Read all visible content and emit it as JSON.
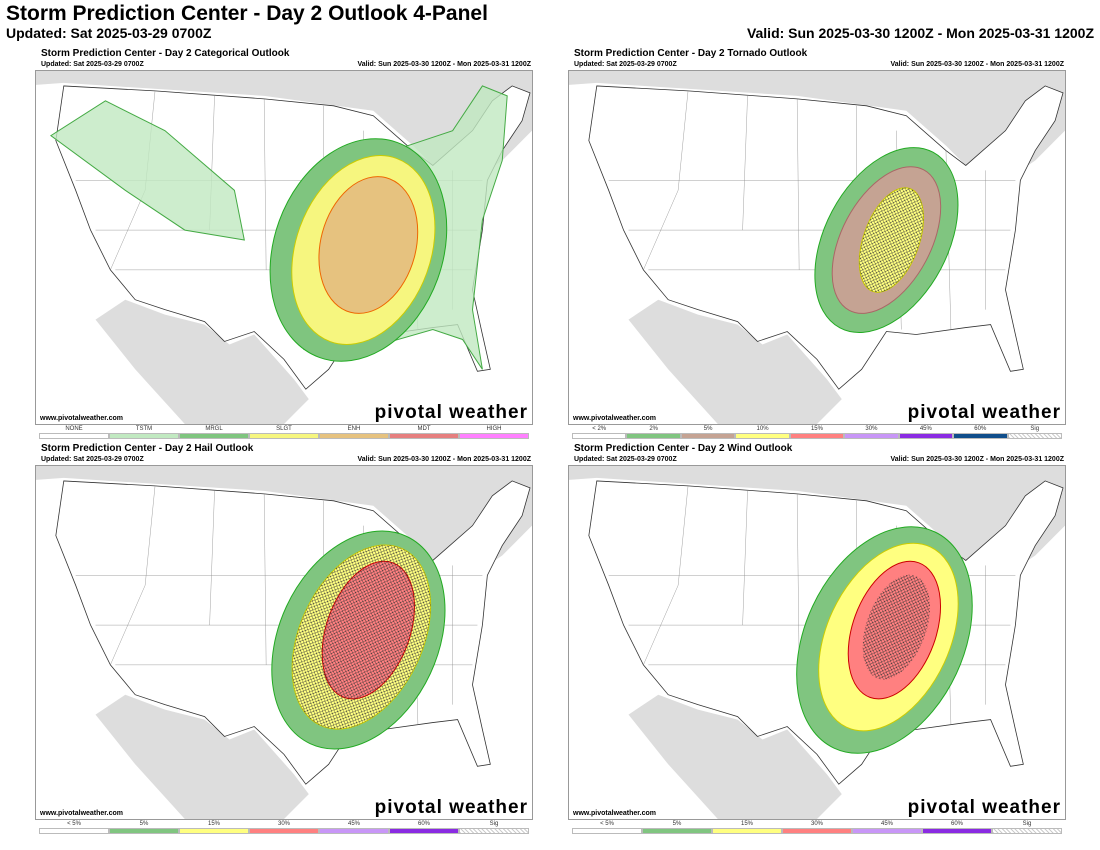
{
  "header": {
    "title": "Storm Prediction Center - Day 2 Outlook 4-Panel",
    "updated": "Updated: Sat 2025-03-29 0700Z",
    "valid": "Valid: Sun 2025-03-30 1200Z - Mon 2025-03-31 1200Z"
  },
  "panels": [
    {
      "title": "Storm Prediction Center - Day 2 Categorical Outlook",
      "updated": "Updated: Sat 2025-03-29 0700Z",
      "valid": "Valid: Sun 2025-03-30 1200Z - Mon 2025-03-31 1200Z",
      "site": "www.pivotalweather.com",
      "logo": "pivotal weather",
      "legend": [
        {
          "label": "NONE",
          "color": "#ffffff"
        },
        {
          "label": "TSTM",
          "color": "#c1e9c1"
        },
        {
          "label": "MRGL",
          "color": "#7fc57f"
        },
        {
          "label": "SLGT",
          "color": "#f6f67f"
        },
        {
          "label": "ENH",
          "color": "#e6c27f"
        },
        {
          "label": "MDT",
          "color": "#e67f7f"
        },
        {
          "label": "HIGH",
          "color": "#ff80ff"
        }
      ]
    },
    {
      "title": "Storm Prediction Center - Day 2 Tornado Outlook",
      "updated": "Updated: Sat 2025-03-29 0700Z",
      "valid": "Valid: Sun 2025-03-30 1200Z - Mon 2025-03-31 1200Z",
      "site": "www.pivotalweather.com",
      "logo": "pivotal weather",
      "legend": [
        {
          "label": "< 2%",
          "color": "#ffffff"
        },
        {
          "label": "2%",
          "color": "#80c580"
        },
        {
          "label": "5%",
          "color": "#c5a393"
        },
        {
          "label": "10%",
          "color": "#ffff80"
        },
        {
          "label": "15%",
          "color": "#ff8080"
        },
        {
          "label": "30%",
          "color": "#c896f7"
        },
        {
          "label": "45%",
          "color": "#8a2be2"
        },
        {
          "label": "60%",
          "color": "#104e8b"
        },
        {
          "label": "Sig",
          "color": "sig"
        }
      ]
    },
    {
      "title": "Storm Prediction Center - Day 2 Hail Outlook",
      "updated": "Updated: Sat 2025-03-29 0700Z",
      "valid": "Valid: Sun 2025-03-30 1200Z - Mon 2025-03-31 1200Z",
      "site": "www.pivotalweather.com",
      "logo": "pivotal weather",
      "legend": [
        {
          "label": "< 5%",
          "color": "#ffffff"
        },
        {
          "label": "5%",
          "color": "#80c580"
        },
        {
          "label": "15%",
          "color": "#ffff80"
        },
        {
          "label": "30%",
          "color": "#ff8080"
        },
        {
          "label": "45%",
          "color": "#c896f7"
        },
        {
          "label": "60%",
          "color": "#8a2be2"
        },
        {
          "label": "Sig",
          "color": "sig"
        }
      ]
    },
    {
      "title": "Storm Prediction Center - Day 2 Wind Outlook",
      "updated": "Updated: Sat 2025-03-29 0700Z",
      "valid": "Valid: Sun 2025-03-30 1200Z - Mon 2025-03-31 1200Z",
      "site": "www.pivotalweather.com",
      "logo": "pivotal weather",
      "legend": [
        {
          "label": "< 5%",
          "color": "#ffffff"
        },
        {
          "label": "5%",
          "color": "#80c580"
        },
        {
          "label": "15%",
          "color": "#ffff80"
        },
        {
          "label": "30%",
          "color": "#ff8080"
        },
        {
          "label": "45%",
          "color": "#c896f7"
        },
        {
          "label": "60%",
          "color": "#8a2be2"
        },
        {
          "label": "Sig",
          "color": "sig"
        }
      ]
    }
  ]
}
